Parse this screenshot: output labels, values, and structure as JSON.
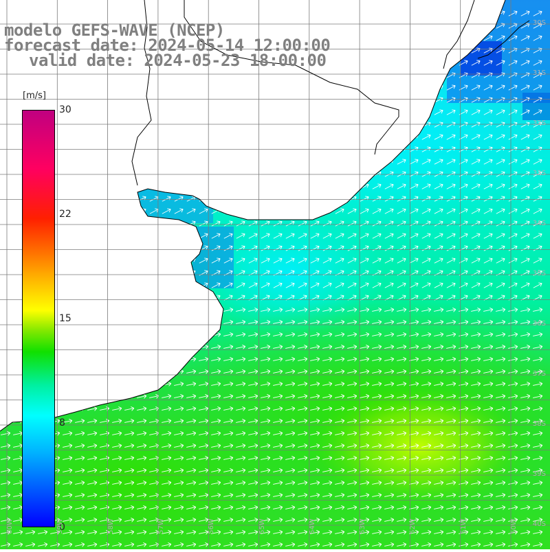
{
  "title": {
    "model": "modelo GEFS-WAVE (NCEP)",
    "forecast": "forecast date: 2024-05-14 12:00:00",
    "valid": "valid date: 2024-05-23 18:00:00"
  },
  "colorbar": {
    "unit": "[m/s]",
    "min": 0,
    "max": 30,
    "ticks": [
      "30",
      "22",
      "15",
      "8",
      "0"
    ]
  },
  "map": {
    "variable": "wind speed with direction arrows",
    "colors": {
      "land": "#ffffff",
      "coast": "#000000",
      "grid": "#7a7a7a",
      "arrow": "#ffffff"
    },
    "lat_labels": [
      "30S",
      "31S",
      "32S",
      "33S",
      "34S",
      "35S",
      "36S",
      "37S",
      "38S",
      "39S",
      "40S"
    ],
    "lon_labels": [
      "60W",
      "59W",
      "58W",
      "57W",
      "56W",
      "55W",
      "54W",
      "53W",
      "52W",
      "51W",
      "50W"
    ]
  }
}
